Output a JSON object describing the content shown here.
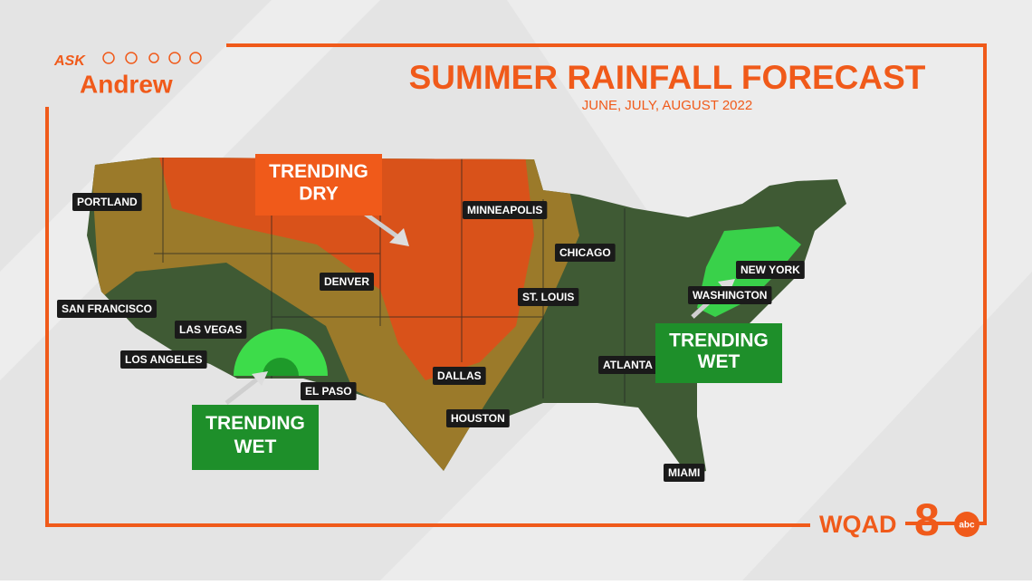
{
  "header": {
    "logo_ask": "ASK",
    "logo_name": "Andrew",
    "title": "SUMMER RAINFALL FORECAST",
    "subtitle": "JUNE, JULY, AUGUST 2022"
  },
  "cities": [
    "PORTLAND",
    "SAN FRANCISCO",
    "LAS VEGAS",
    "LOS ANGELES",
    "DENVER",
    "EL PASO",
    "DALLAS",
    "HOUSTON",
    "MINNEAPOLIS",
    "CHICAGO",
    "ST. LOUIS",
    "ATLANTA",
    "MIAMI",
    "NEW YORK",
    "WASHINGTON"
  ],
  "callouts": [
    {
      "line1": "TRENDING",
      "line2": "DRY"
    },
    {
      "line1": "TRENDING",
      "line2": "WET"
    },
    {
      "line1": "TRENDING",
      "line2": "WET"
    }
  ],
  "station": {
    "call": "WQAD",
    "channel": "8",
    "network": "abc"
  }
}
